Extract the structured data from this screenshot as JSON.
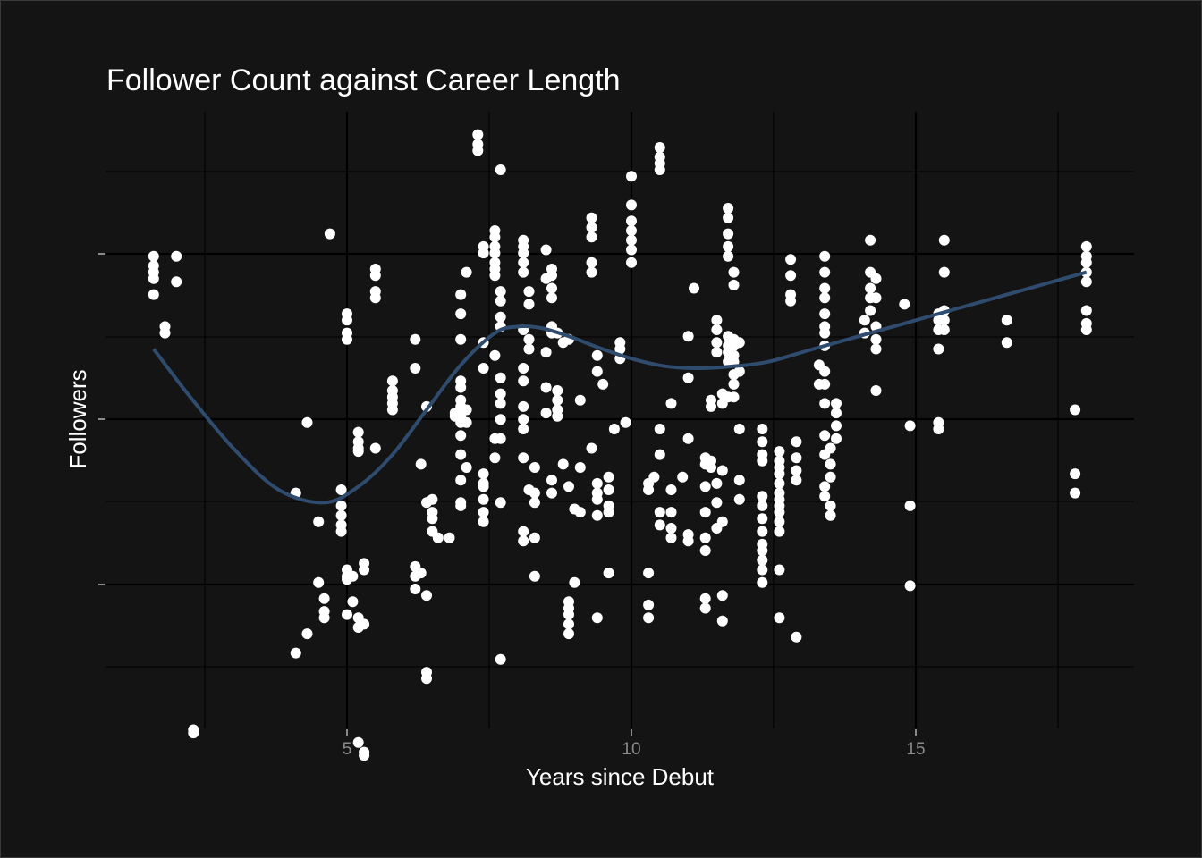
{
  "chart_data": {
    "type": "scatter",
    "title": "Follower Count against Career Length",
    "xlabel": "Years since Debut",
    "ylabel": "Followers",
    "xlim": [
      1.0,
      18.7
    ],
    "ylim": [
      0.0,
      10.0
    ],
    "x_ticks": [
      5,
      10,
      15
    ],
    "x_tick_labels": [
      "5",
      "10",
      "15"
    ],
    "y_tick_labels_visible": false,
    "grid": true,
    "colors": {
      "background": "#141414",
      "panel": "#141414",
      "grid": "#000000",
      "points": "#ffffff",
      "smooth_line": "#2f4b6e",
      "title": "#ffffff",
      "tick_labels": "#8a8a8a"
    },
    "smooth_line": {
      "x": [
        1.6,
        2.2,
        3.0,
        3.8,
        4.6,
        5.2,
        5.8,
        6.4,
        7.0,
        7.6,
        8.0,
        8.4,
        8.9,
        9.4,
        10.0,
        10.6,
        11.2,
        11.8,
        12.4,
        13.2,
        14.2,
        15.2,
        16.2,
        17.2,
        18.0
      ],
      "y": [
        6.25,
        5.55,
        4.7,
        4.05,
        3.85,
        4.1,
        4.6,
        5.3,
        6.0,
        6.5,
        6.6,
        6.58,
        6.45,
        6.28,
        6.1,
        5.98,
        5.95,
        5.98,
        6.05,
        6.25,
        6.5,
        6.75,
        7.0,
        7.25,
        7.45
      ]
    },
    "points": [
      [
        1.6,
        7.7
      ],
      [
        1.6,
        7.55
      ],
      [
        1.6,
        7.45
      ],
      [
        1.6,
        7.35
      ],
      [
        1.6,
        7.1
      ],
      [
        1.8,
        6.6
      ],
      [
        1.8,
        6.5
      ],
      [
        2.0,
        7.7
      ],
      [
        2.0,
        7.3
      ],
      [
        2.3,
        0.3
      ],
      [
        2.3,
        0.25
      ],
      [
        4.1,
        4.0
      ],
      [
        4.1,
        1.5
      ],
      [
        4.3,
        5.1
      ],
      [
        4.3,
        1.8
      ],
      [
        4.5,
        3.55
      ],
      [
        4.5,
        2.6
      ],
      [
        4.6,
        2.35
      ],
      [
        4.6,
        2.15
      ],
      [
        4.6,
        2.05
      ],
      [
        4.7,
        8.05
      ],
      [
        4.9,
        4.05
      ],
      [
        4.9,
        3.8
      ],
      [
        4.9,
        3.65
      ],
      [
        4.9,
        3.5
      ],
      [
        4.9,
        3.4
      ],
      [
        5.0,
        6.8
      ],
      [
        5.0,
        6.7
      ],
      [
        5.0,
        6.5
      ],
      [
        5.0,
        6.4
      ],
      [
        5.0,
        2.8
      ],
      [
        5.0,
        2.7
      ],
      [
        5.0,
        2.65
      ],
      [
        5.0,
        2.1
      ],
      [
        5.1,
        2.7
      ],
      [
        5.1,
        2.3
      ],
      [
        5.2,
        4.95
      ],
      [
        5.2,
        4.8
      ],
      [
        5.2,
        4.7
      ],
      [
        5.2,
        4.65
      ],
      [
        5.2,
        2.05
      ],
      [
        5.2,
        1.9
      ],
      [
        5.2,
        0.1
      ],
      [
        5.3,
        2.9
      ],
      [
        5.3,
        2.8
      ],
      [
        5.3,
        1.95
      ],
      [
        5.3,
        -0.05
      ],
      [
        5.3,
        -0.1
      ],
      [
        5.5,
        7.5
      ],
      [
        5.5,
        7.4
      ],
      [
        5.5,
        7.15
      ],
      [
        5.5,
        7.05
      ],
      [
        5.5,
        4.7
      ],
      [
        5.8,
        5.75
      ],
      [
        5.8,
        5.6
      ],
      [
        5.8,
        5.5
      ],
      [
        5.8,
        5.4
      ],
      [
        5.8,
        5.3
      ],
      [
        6.2,
        6.4
      ],
      [
        6.2,
        5.95
      ],
      [
        6.2,
        2.85
      ],
      [
        6.2,
        2.7
      ],
      [
        6.2,
        2.5
      ],
      [
        6.3,
        4.45
      ],
      [
        6.3,
        2.75
      ],
      [
        6.4,
        3.85
      ],
      [
        6.4,
        2.4
      ],
      [
        6.4,
        1.2
      ],
      [
        6.4,
        1.1
      ],
      [
        6.4,
        5.35
      ],
      [
        6.5,
        3.9
      ],
      [
        6.5,
        3.7
      ],
      [
        6.5,
        3.6
      ],
      [
        6.5,
        3.4
      ],
      [
        6.6,
        3.3
      ],
      [
        6.8,
        3.3
      ],
      [
        6.9,
        5.25
      ],
      [
        6.9,
        5.2
      ],
      [
        7.0,
        7.1
      ],
      [
        7.0,
        6.8
      ],
      [
        7.0,
        6.4
      ],
      [
        7.0,
        5.75
      ],
      [
        7.0,
        5.65
      ],
      [
        7.0,
        5.45
      ],
      [
        7.0,
        5.35
      ],
      [
        7.0,
        5.2
      ],
      [
        7.0,
        5.1
      ],
      [
        7.0,
        4.9
      ],
      [
        7.0,
        4.6
      ],
      [
        7.0,
        4.2
      ],
      [
        7.0,
        3.85
      ],
      [
        7.0,
        3.8
      ],
      [
        7.1,
        7.45
      ],
      [
        7.1,
        5.3
      ],
      [
        7.1,
        5.1
      ],
      [
        7.1,
        4.4
      ],
      [
        7.3,
        9.6
      ],
      [
        7.3,
        9.45
      ],
      [
        7.3,
        9.35
      ],
      [
        7.4,
        7.85
      ],
      [
        7.4,
        7.75
      ],
      [
        7.4,
        6.35
      ],
      [
        7.4,
        5.95
      ],
      [
        7.4,
        4.3
      ],
      [
        7.4,
        4.15
      ],
      [
        7.4,
        4.1
      ],
      [
        7.4,
        3.9
      ],
      [
        7.4,
        3.7
      ],
      [
        7.4,
        3.55
      ],
      [
        7.6,
        8.1
      ],
      [
        7.6,
        8.0
      ],
      [
        7.6,
        7.85
      ],
      [
        7.6,
        7.75
      ],
      [
        7.6,
        7.6
      ],
      [
        7.6,
        7.5
      ],
      [
        7.6,
        7.4
      ],
      [
        7.6,
        6.15
      ],
      [
        7.6,
        4.85
      ],
      [
        7.6,
        4.55
      ],
      [
        7.7,
        9.05
      ],
      [
        7.7,
        7.15
      ],
      [
        7.7,
        7.0
      ],
      [
        7.7,
        6.75
      ],
      [
        7.7,
        6.6
      ],
      [
        7.7,
        5.8
      ],
      [
        7.7,
        5.55
      ],
      [
        7.7,
        5.4
      ],
      [
        7.7,
        5.15
      ],
      [
        7.7,
        4.85
      ],
      [
        7.7,
        3.85
      ],
      [
        7.7,
        1.4
      ],
      [
        8.1,
        7.95
      ],
      [
        8.1,
        7.85
      ],
      [
        8.1,
        7.75
      ],
      [
        8.1,
        7.6
      ],
      [
        8.1,
        7.45
      ],
      [
        8.1,
        6.55
      ],
      [
        8.1,
        5.95
      ],
      [
        8.1,
        5.75
      ],
      [
        8.1,
        5.35
      ],
      [
        8.1,
        5.15
      ],
      [
        8.1,
        5.0
      ],
      [
        8.1,
        4.55
      ],
      [
        8.1,
        3.4
      ],
      [
        8.1,
        3.25
      ],
      [
        8.2,
        7.15
      ],
      [
        8.2,
        6.95
      ],
      [
        8.2,
        6.4
      ],
      [
        8.2,
        6.25
      ],
      [
        8.2,
        4.05
      ],
      [
        8.3,
        4.0
      ],
      [
        8.3,
        4.4
      ],
      [
        8.3,
        3.85
      ],
      [
        8.3,
        3.3
      ],
      [
        8.3,
        2.7
      ],
      [
        8.5,
        7.8
      ],
      [
        8.5,
        7.35
      ],
      [
        8.5,
        6.2
      ],
      [
        8.5,
        5.65
      ],
      [
        8.5,
        5.25
      ],
      [
        8.6,
        7.5
      ],
      [
        8.6,
        7.4
      ],
      [
        8.6,
        7.2
      ],
      [
        8.6,
        7.05
      ],
      [
        8.6,
        6.6
      ],
      [
        8.6,
        6.5
      ],
      [
        8.6,
        4.2
      ],
      [
        8.6,
        4.0
      ],
      [
        8.7,
        5.6
      ],
      [
        8.7,
        5.45
      ],
      [
        8.7,
        5.3
      ],
      [
        8.7,
        5.2
      ],
      [
        8.7,
        6.5
      ],
      [
        8.8,
        6.35
      ],
      [
        8.8,
        4.45
      ],
      [
        8.9,
        6.4
      ],
      [
        8.9,
        4.1
      ],
      [
        8.9,
        2.3
      ],
      [
        8.9,
        2.2
      ],
      [
        8.9,
        2.1
      ],
      [
        8.9,
        1.95
      ],
      [
        8.9,
        1.8
      ],
      [
        9.0,
        3.75
      ],
      [
        9.0,
        2.6
      ],
      [
        9.1,
        3.7
      ],
      [
        9.1,
        5.45
      ],
      [
        9.1,
        4.4
      ],
      [
        9.3,
        8.3
      ],
      [
        9.3,
        8.15
      ],
      [
        9.3,
        8.0
      ],
      [
        9.3,
        7.6
      ],
      [
        9.3,
        7.45
      ],
      [
        9.3,
        4.7
      ],
      [
        9.4,
        6.15
      ],
      [
        9.4,
        5.9
      ],
      [
        9.4,
        4.15
      ],
      [
        9.4,
        4.0
      ],
      [
        9.4,
        3.9
      ],
      [
        9.4,
        3.65
      ],
      [
        9.4,
        2.05
      ],
      [
        9.5,
        5.7
      ],
      [
        9.6,
        4.25
      ],
      [
        9.6,
        4.05
      ],
      [
        9.6,
        3.8
      ],
      [
        9.6,
        3.7
      ],
      [
        9.6,
        2.75
      ],
      [
        9.7,
        5.0
      ],
      [
        9.8,
        6.35
      ],
      [
        9.8,
        6.25
      ],
      [
        9.8,
        6.1
      ],
      [
        9.9,
        5.1
      ],
      [
        10.0,
        8.95
      ],
      [
        10.0,
        8.5
      ],
      [
        10.0,
        8.25
      ],
      [
        10.0,
        8.1
      ],
      [
        10.0,
        7.95
      ],
      [
        10.0,
        7.8
      ],
      [
        10.0,
        7.6
      ],
      [
        10.3,
        4.15
      ],
      [
        10.3,
        4.05
      ],
      [
        10.3,
        2.75
      ],
      [
        10.3,
        2.25
      ],
      [
        10.3,
        2.05
      ],
      [
        10.4,
        4.25
      ],
      [
        10.5,
        9.4
      ],
      [
        10.5,
        9.25
      ],
      [
        10.5,
        9.15
      ],
      [
        10.5,
        9.05
      ],
      [
        10.5,
        5.0
      ],
      [
        10.5,
        4.6
      ],
      [
        10.5,
        3.7
      ],
      [
        10.5,
        3.5
      ],
      [
        10.7,
        5.4
      ],
      [
        10.7,
        4.05
      ],
      [
        10.7,
        3.7
      ],
      [
        10.7,
        3.45
      ],
      [
        10.7,
        3.3
      ],
      [
        10.9,
        4.25
      ],
      [
        11.0,
        6.45
      ],
      [
        11.0,
        5.8
      ],
      [
        11.0,
        4.85
      ],
      [
        11.0,
        3.35
      ],
      [
        11.0,
        3.25
      ],
      [
        11.1,
        7.2
      ],
      [
        11.3,
        4.55
      ],
      [
        11.3,
        4.45
      ],
      [
        11.3,
        4.1
      ],
      [
        11.3,
        3.7
      ],
      [
        11.3,
        3.3
      ],
      [
        11.3,
        3.1
      ],
      [
        11.3,
        2.35
      ],
      [
        11.3,
        2.2
      ],
      [
        11.4,
        5.45
      ],
      [
        11.4,
        5.35
      ],
      [
        11.4,
        4.5
      ],
      [
        11.4,
        4.4
      ],
      [
        11.5,
        6.7
      ],
      [
        11.5,
        6.55
      ],
      [
        11.5,
        6.35
      ],
      [
        11.5,
        6.2
      ],
      [
        11.5,
        4.15
      ],
      [
        11.5,
        3.85
      ],
      [
        11.5,
        3.45
      ],
      [
        11.6,
        4.35
      ],
      [
        11.6,
        3.55
      ],
      [
        11.6,
        2.4
      ],
      [
        11.6,
        5.55
      ],
      [
        11.6,
        5.4
      ],
      [
        11.6,
        2.0
      ],
      [
        11.7,
        8.45
      ],
      [
        11.7,
        8.3
      ],
      [
        11.7,
        8.05
      ],
      [
        11.7,
        7.85
      ],
      [
        11.7,
        7.7
      ],
      [
        11.7,
        6.45
      ],
      [
        11.7,
        6.3
      ],
      [
        11.7,
        6.2
      ],
      [
        11.7,
        6.05
      ],
      [
        11.7,
        5.5
      ],
      [
        11.8,
        7.45
      ],
      [
        11.8,
        7.25
      ],
      [
        11.8,
        6.4
      ],
      [
        11.8,
        6.3
      ],
      [
        11.8,
        6.15
      ],
      [
        11.8,
        6.05
      ],
      [
        11.8,
        5.85
      ],
      [
        11.8,
        5.7
      ],
      [
        11.8,
        5.5
      ],
      [
        11.9,
        6.35
      ],
      [
        11.9,
        5.9
      ],
      [
        11.9,
        4.2
      ],
      [
        11.9,
        3.9
      ],
      [
        11.9,
        5.0
      ],
      [
        12.3,
        5.0
      ],
      [
        12.3,
        4.8
      ],
      [
        12.3,
        4.6
      ],
      [
        12.3,
        4.5
      ],
      [
        12.3,
        3.95
      ],
      [
        12.3,
        3.8
      ],
      [
        12.3,
        3.6
      ],
      [
        12.3,
        3.4
      ],
      [
        12.3,
        3.2
      ],
      [
        12.3,
        3.1
      ],
      [
        12.3,
        2.95
      ],
      [
        12.3,
        2.8
      ],
      [
        12.3,
        2.6
      ],
      [
        12.6,
        4.65
      ],
      [
        12.6,
        4.5
      ],
      [
        12.6,
        4.4
      ],
      [
        12.6,
        4.3
      ],
      [
        12.6,
        4.15
      ],
      [
        12.6,
        4.0
      ],
      [
        12.6,
        3.9
      ],
      [
        12.6,
        3.8
      ],
      [
        12.6,
        3.7
      ],
      [
        12.6,
        3.55
      ],
      [
        12.6,
        3.4
      ],
      [
        12.6,
        2.8
      ],
      [
        12.6,
        2.05
      ],
      [
        12.8,
        7.65
      ],
      [
        12.8,
        7.4
      ],
      [
        12.8,
        7.1
      ],
      [
        12.8,
        7.0
      ],
      [
        12.9,
        4.8
      ],
      [
        12.9,
        4.55
      ],
      [
        12.9,
        4.35
      ],
      [
        12.9,
        4.2
      ],
      [
        12.9,
        1.75
      ],
      [
        13.3,
        6.0
      ],
      [
        13.3,
        5.7
      ],
      [
        13.4,
        7.7
      ],
      [
        13.4,
        7.45
      ],
      [
        13.4,
        7.2
      ],
      [
        13.4,
        7.05
      ],
      [
        13.4,
        6.8
      ],
      [
        13.4,
        6.6
      ],
      [
        13.4,
        6.5
      ],
      [
        13.4,
        6.3
      ],
      [
        13.4,
        5.9
      ],
      [
        13.4,
        5.7
      ],
      [
        13.4,
        5.4
      ],
      [
        13.4,
        4.9
      ],
      [
        13.4,
        4.6
      ],
      [
        13.4,
        4.1
      ],
      [
        13.4,
        3.95
      ],
      [
        13.5,
        4.7
      ],
      [
        13.5,
        4.45
      ],
      [
        13.5,
        3.8
      ],
      [
        13.5,
        3.65
      ],
      [
        13.5,
        4.25
      ],
      [
        13.6,
        5.4
      ],
      [
        13.6,
        5.25
      ],
      [
        13.6,
        5.05
      ],
      [
        13.6,
        4.85
      ],
      [
        14.1,
        6.7
      ],
      [
        14.1,
        6.5
      ],
      [
        14.2,
        7.95
      ],
      [
        14.2,
        7.45
      ],
      [
        14.2,
        7.2
      ],
      [
        14.2,
        7.05
      ],
      [
        14.2,
        6.85
      ],
      [
        14.3,
        7.35
      ],
      [
        14.3,
        7.05
      ],
      [
        14.3,
        6.6
      ],
      [
        14.3,
        6.4
      ],
      [
        14.3,
        6.25
      ],
      [
        14.3,
        5.6
      ],
      [
        14.8,
        6.95
      ],
      [
        14.9,
        5.05
      ],
      [
        14.9,
        3.8
      ],
      [
        14.9,
        2.55
      ],
      [
        15.4,
        6.8
      ],
      [
        15.4,
        6.7
      ],
      [
        15.4,
        6.55
      ],
      [
        15.4,
        6.25
      ],
      [
        15.4,
        5.1
      ],
      [
        15.4,
        5.0
      ],
      [
        15.5,
        7.95
      ],
      [
        15.5,
        7.45
      ],
      [
        15.5,
        6.85
      ],
      [
        15.5,
        6.7
      ],
      [
        15.5,
        6.55
      ],
      [
        16.6,
        6.7
      ],
      [
        16.6,
        6.35
      ],
      [
        17.8,
        5.3
      ],
      [
        17.8,
        4.3
      ],
      [
        17.8,
        4.0
      ],
      [
        18.0,
        7.85
      ],
      [
        18.0,
        7.7
      ],
      [
        18.0,
        7.6
      ],
      [
        18.0,
        7.45
      ],
      [
        18.0,
        7.3
      ],
      [
        18.0,
        6.85
      ],
      [
        18.0,
        6.65
      ],
      [
        18.0,
        6.55
      ]
    ]
  }
}
